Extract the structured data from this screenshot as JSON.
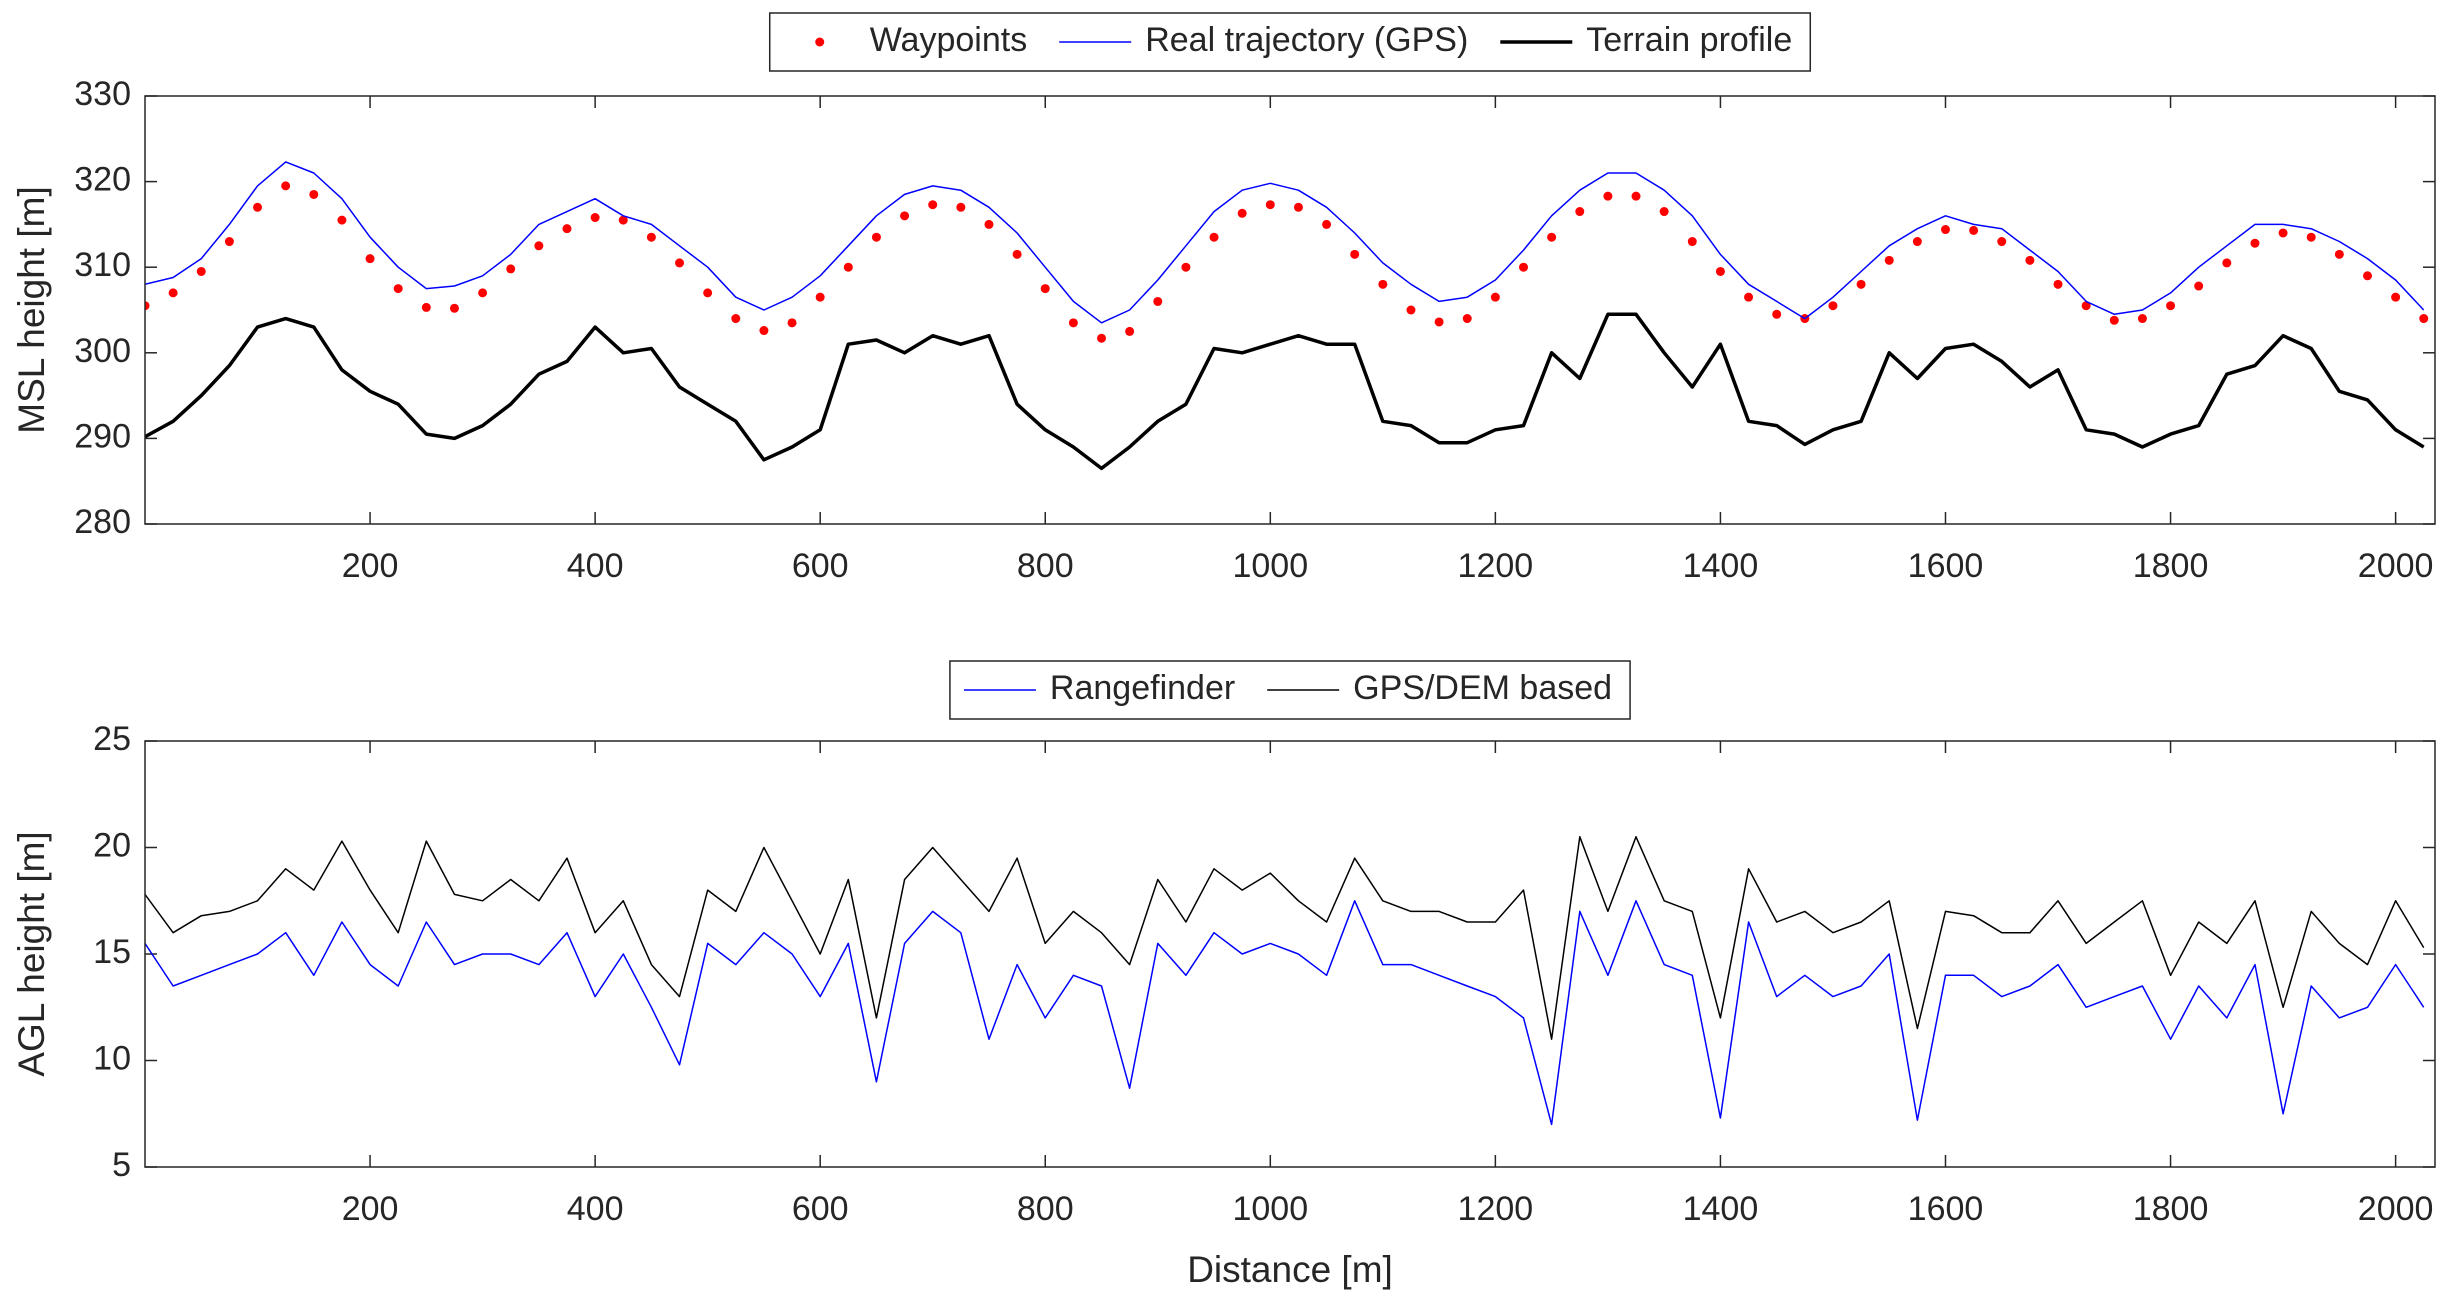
{
  "chart_data": [
    {
      "type": "line",
      "ylabel": "MSL height [m]",
      "xlim": [
        0,
        2035
      ],
      "xticks": [
        200,
        400,
        600,
        800,
        1000,
        1200,
        1400,
        1600,
        1800,
        2000
      ],
      "ylim": [
        280,
        330
      ],
      "yticks": [
        280,
        290,
        300,
        310,
        320,
        330
      ],
      "legend": "upper center",
      "x": [
        0,
        25,
        50,
        75,
        100,
        125,
        150,
        175,
        200,
        225,
        250,
        275,
        300,
        325,
        350,
        375,
        400,
        425,
        450,
        475,
        500,
        525,
        550,
        575,
        600,
        625,
        650,
        675,
        700,
        725,
        750,
        775,
        800,
        825,
        850,
        875,
        900,
        925,
        950,
        975,
        1000,
        1025,
        1050,
        1075,
        1100,
        1125,
        1150,
        1175,
        1200,
        1225,
        1250,
        1275,
        1300,
        1325,
        1350,
        1375,
        1400,
        1425,
        1450,
        1475,
        1500,
        1525,
        1550,
        1575,
        1600,
        1625,
        1650,
        1675,
        1700,
        1725,
        1750,
        1775,
        1800,
        1825,
        1850,
        1875,
        1900,
        1925,
        1950,
        1975,
        2000,
        2025
      ],
      "series": [
        {
          "name": "Waypoints",
          "color": "#ff0000",
          "marker": "dot",
          "values": [
            305.5,
            307,
            309.5,
            313,
            317,
            319.5,
            318.5,
            315.5,
            311,
            307.5,
            305.3,
            305.2,
            307,
            309.8,
            312.5,
            314.5,
            315.8,
            315.5,
            313.5,
            310.5,
            307,
            304,
            302.6,
            303.5,
            306.5,
            310,
            313.5,
            316,
            317.3,
            317,
            315,
            311.5,
            307.5,
            303.5,
            301.7,
            302.5,
            306,
            310,
            313.5,
            316.3,
            317.3,
            317,
            315,
            311.5,
            308,
            305,
            303.6,
            304,
            306.5,
            310,
            313.5,
            316.5,
            318.3,
            318.3,
            316.5,
            313,
            309.5,
            306.5,
            304.5,
            304,
            305.5,
            308,
            310.8,
            313,
            314.4,
            314.3,
            313,
            310.8,
            308,
            305.5,
            303.8,
            304,
            305.5,
            307.8,
            310.5,
            312.8,
            314,
            313.5,
            311.5,
            309,
            306.5,
            304
          ]
        },
        {
          "name": "Real trajectory (GPS)",
          "color": "#0000ff",
          "line_width": 1.5,
          "values": [
            308,
            308.8,
            311,
            315,
            319.5,
            322.3,
            321,
            318,
            313.5,
            310,
            307.5,
            307.8,
            309,
            311.5,
            315,
            316.5,
            318,
            316,
            315,
            312.5,
            310,
            306.5,
            305,
            306.5,
            309,
            312.5,
            316,
            318.5,
            319.5,
            319,
            317,
            314,
            310,
            306,
            303.5,
            305,
            308.5,
            312.5,
            316.5,
            319,
            319.8,
            319,
            317,
            314,
            310.5,
            308,
            306,
            306.5,
            308.5,
            312,
            316,
            319,
            321,
            321,
            319,
            316,
            311.5,
            308,
            306,
            304,
            306.5,
            309.5,
            312.5,
            314.5,
            316,
            315,
            314.5,
            312,
            309.5,
            306,
            304.5,
            305,
            307,
            310,
            312.5,
            315,
            315,
            314.5,
            313,
            311,
            308.5,
            305
          ]
        },
        {
          "name": "Terrain profile",
          "color": "#000000",
          "line_width": 3.5,
          "values": [
            290.2,
            292,
            295,
            298.5,
            303,
            304,
            303,
            298,
            295.5,
            294,
            290.5,
            290,
            291.5,
            294,
            297.5,
            299,
            303,
            300,
            300.5,
            296,
            294,
            292,
            287.5,
            289,
            291,
            301,
            301.5,
            300,
            302,
            301,
            302,
            294,
            291,
            289,
            286.5,
            289,
            292,
            294,
            300.5,
            300,
            301,
            302,
            301,
            301,
            292,
            291.5,
            289.5,
            289.5,
            291,
            291.5,
            300,
            297,
            304.5,
            304.5,
            300,
            296,
            301,
            292,
            291.5,
            289.3,
            291,
            292,
            300,
            297,
            300.5,
            301,
            299,
            296,
            298,
            291,
            290.5,
            289,
            290.5,
            291.5,
            297.5,
            298.5,
            302,
            300.5,
            295.5,
            294.5,
            291,
            289
          ]
        }
      ]
    },
    {
      "type": "line",
      "xlabel": "Distance [m]",
      "ylabel": "AGL height [m]",
      "xlim": [
        0,
        2035
      ],
      "xticks": [
        200,
        400,
        600,
        800,
        1000,
        1200,
        1400,
        1600,
        1800,
        2000
      ],
      "ylim": [
        5,
        25
      ],
      "yticks": [
        5,
        10,
        15,
        20,
        25
      ],
      "legend": "upper center",
      "x": [
        0,
        25,
        50,
        75,
        100,
        125,
        150,
        175,
        200,
        225,
        250,
        275,
        300,
        325,
        350,
        375,
        400,
        425,
        450,
        475,
        500,
        525,
        550,
        575,
        600,
        625,
        650,
        675,
        700,
        725,
        750,
        775,
        800,
        825,
        850,
        875,
        900,
        925,
        950,
        975,
        1000,
        1025,
        1050,
        1075,
        1100,
        1125,
        1150,
        1175,
        1200,
        1225,
        1250,
        1275,
        1300,
        1325,
        1350,
        1375,
        1400,
        1425,
        1450,
        1475,
        1500,
        1525,
        1550,
        1575,
        1600,
        1625,
        1650,
        1675,
        1700,
        1725,
        1750,
        1775,
        1800,
        1825,
        1850,
        1875,
        1900,
        1925,
        1950,
        1975,
        2000,
        2025
      ],
      "series": [
        {
          "name": "Rangefinder",
          "color": "#0000ff",
          "line_width": 1.5,
          "values": [
            15.5,
            13.5,
            14,
            14.5,
            15,
            16,
            14,
            16.5,
            14.5,
            13.5,
            16.5,
            14.5,
            15,
            15,
            14.5,
            16,
            13,
            15,
            12.5,
            9.8,
            15.5,
            14.5,
            16,
            15,
            13,
            15.5,
            9,
            15.5,
            17,
            16,
            11,
            14.5,
            12,
            14,
            13.5,
            8.7,
            15.5,
            14,
            16,
            15,
            15.5,
            15,
            14,
            17.5,
            14.5,
            14.5,
            14,
            13.5,
            13,
            12,
            7,
            17,
            14,
            17.5,
            14.5,
            14,
            7.3,
            16.5,
            13,
            14,
            13,
            13.5,
            15,
            7.2,
            14,
            14,
            13,
            13.5,
            14.5,
            12.5,
            13,
            13.5,
            11,
            13.5,
            12,
            14.5,
            7.5,
            13.5,
            12,
            12.5,
            14.5,
            12.5
          ]
        },
        {
          "name": "GPS/DEM based",
          "color": "#000000",
          "line_width": 1.5,
          "values": [
            17.8,
            16,
            16.8,
            17,
            17.5,
            19,
            18,
            20.3,
            18,
            16,
            20.3,
            17.8,
            17.5,
            18.5,
            17.5,
            19.5,
            16,
            17.5,
            14.5,
            13,
            18,
            17,
            20,
            17.5,
            15,
            18.5,
            12,
            18.5,
            20,
            18.5,
            17,
            19.5,
            15.5,
            17,
            16,
            14.5,
            18.5,
            16.5,
            19,
            18,
            18.8,
            17.5,
            16.5,
            19.5,
            17.5,
            17,
            17,
            16.5,
            16.5,
            18,
            11,
            20.5,
            17,
            20.5,
            17.5,
            17,
            12,
            19,
            16.5,
            17,
            16,
            16.5,
            17.5,
            11.5,
            17,
            16.8,
            16,
            16,
            17.5,
            15.5,
            16.5,
            17.5,
            14,
            16.5,
            15.5,
            17.5,
            12.5,
            17,
            15.5,
            14.5,
            17.5,
            15.3
          ]
        }
      ]
    }
  ]
}
